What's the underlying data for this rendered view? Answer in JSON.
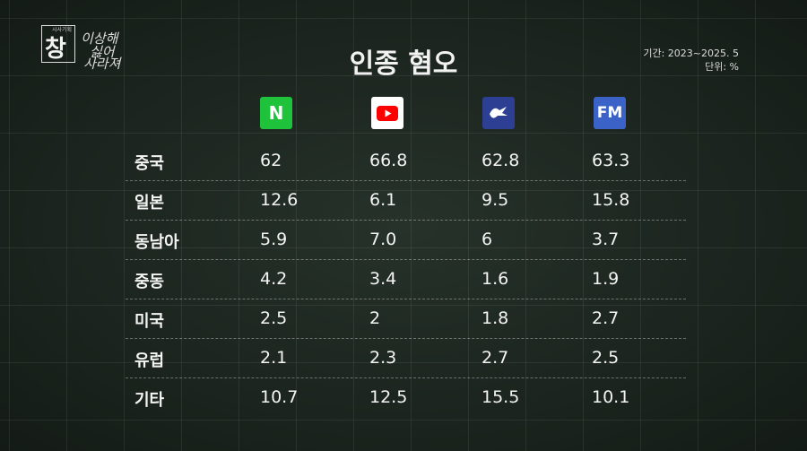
{
  "logo": {
    "small": "시사기획",
    "big": "창",
    "tagline": [
      "이상해",
      "싫어",
      "사라져"
    ]
  },
  "title": "인종 혐오",
  "meta": {
    "period": "기간: 2023~2025. 5",
    "unit": "단위: %"
  },
  "table": {
    "header": {
      "naver": "N",
      "fmkorea": "FM"
    },
    "rows": [
      [
        "중국",
        "62",
        "66.8",
        "62.8",
        "63.3"
      ],
      [
        "일본",
        "12.6",
        "6.1",
        "9.5",
        "15.8"
      ],
      [
        "동남아",
        "5.9",
        "7.0",
        "6",
        "3.7"
      ],
      [
        "중동",
        "4.2",
        "3.4",
        "1.6",
        "1.9"
      ],
      [
        "미국",
        "2.5",
        "2",
        "1.8",
        "2.7"
      ],
      [
        "유럽",
        "2.1",
        "2.3",
        "2.7",
        "2.5"
      ],
      [
        "기타",
        "10.7",
        "12.5",
        "15.5",
        "10.1"
      ]
    ]
  }
}
